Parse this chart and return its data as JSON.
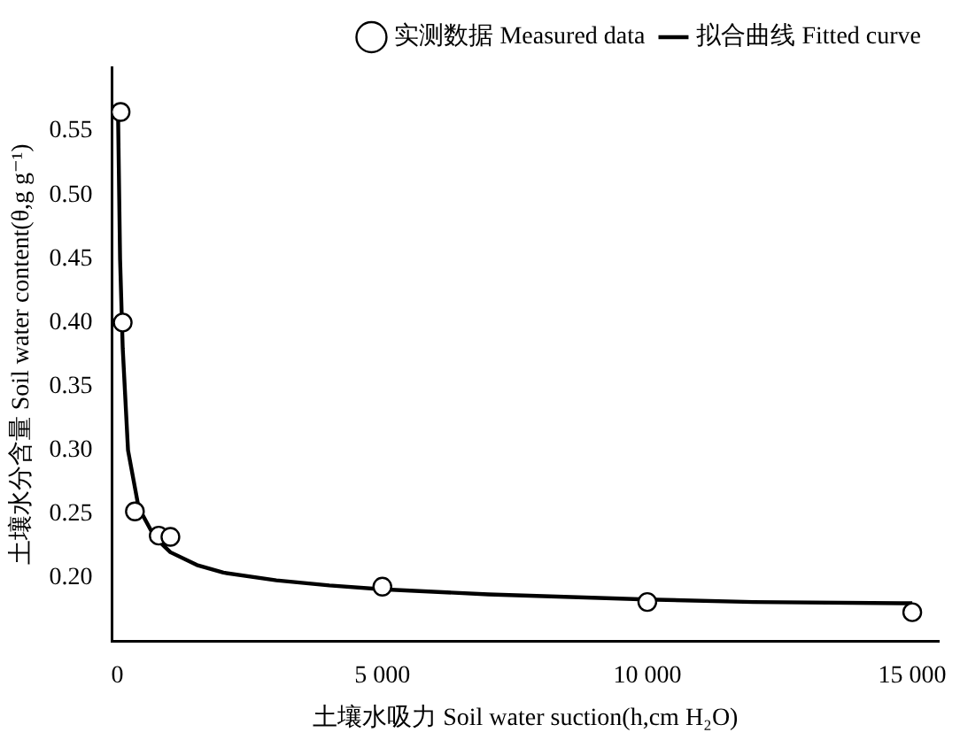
{
  "chart_data": {
    "type": "scatter",
    "xlabel": "土壤水吸力 Soil water suction(h,cm H₂O)",
    "ylabel": "土壤水分含量 Soil water content(θ,g g⁻¹)",
    "xlim": [
      -100,
      15500
    ],
    "xticks": [
      {
        "value": 0,
        "label": "0"
      },
      {
        "value": 5000,
        "label": "5 000"
      },
      {
        "value": 10000,
        "label": "10 000"
      },
      {
        "value": 15000,
        "label": "15 000"
      }
    ],
    "ylim": [
      0.15,
      0.6
    ],
    "yticks": [
      {
        "value": 0.2,
        "label": "0.20"
      },
      {
        "value": 0.25,
        "label": "0.25"
      },
      {
        "value": 0.3,
        "label": "0.30"
      },
      {
        "value": 0.35,
        "label": "0.35"
      },
      {
        "value": 0.4,
        "label": "0.40"
      },
      {
        "value": 0.45,
        "label": "0.45"
      },
      {
        "value": 0.5,
        "label": "0.50"
      },
      {
        "value": 0.55,
        "label": "0.55"
      }
    ],
    "grid": false,
    "legend": "top right",
    "series": [
      {
        "name": "实测数据 Measured data",
        "type": "scatter",
        "marker": "circle",
        "color": "#000000",
        "x": [
          60,
          100,
          330,
          780,
          1000,
          5000,
          10000,
          15000
        ],
        "values": [
          0.565,
          0.4,
          0.252,
          0.233,
          0.232,
          0.193,
          0.181,
          0.173
        ]
      },
      {
        "name": "拟合曲线 Fitted curve",
        "type": "line",
        "marker": "none",
        "color": "#000000",
        "x": [
          10,
          50,
          100,
          200,
          400,
          700,
          1000,
          1500,
          2000,
          3000,
          4000,
          5000,
          7000,
          10000,
          12000,
          15000
        ],
        "values": [
          0.57,
          0.45,
          0.38,
          0.3,
          0.255,
          0.232,
          0.22,
          0.21,
          0.204,
          0.198,
          0.194,
          0.191,
          0.187,
          0.183,
          0.181,
          0.18
        ]
      }
    ]
  }
}
